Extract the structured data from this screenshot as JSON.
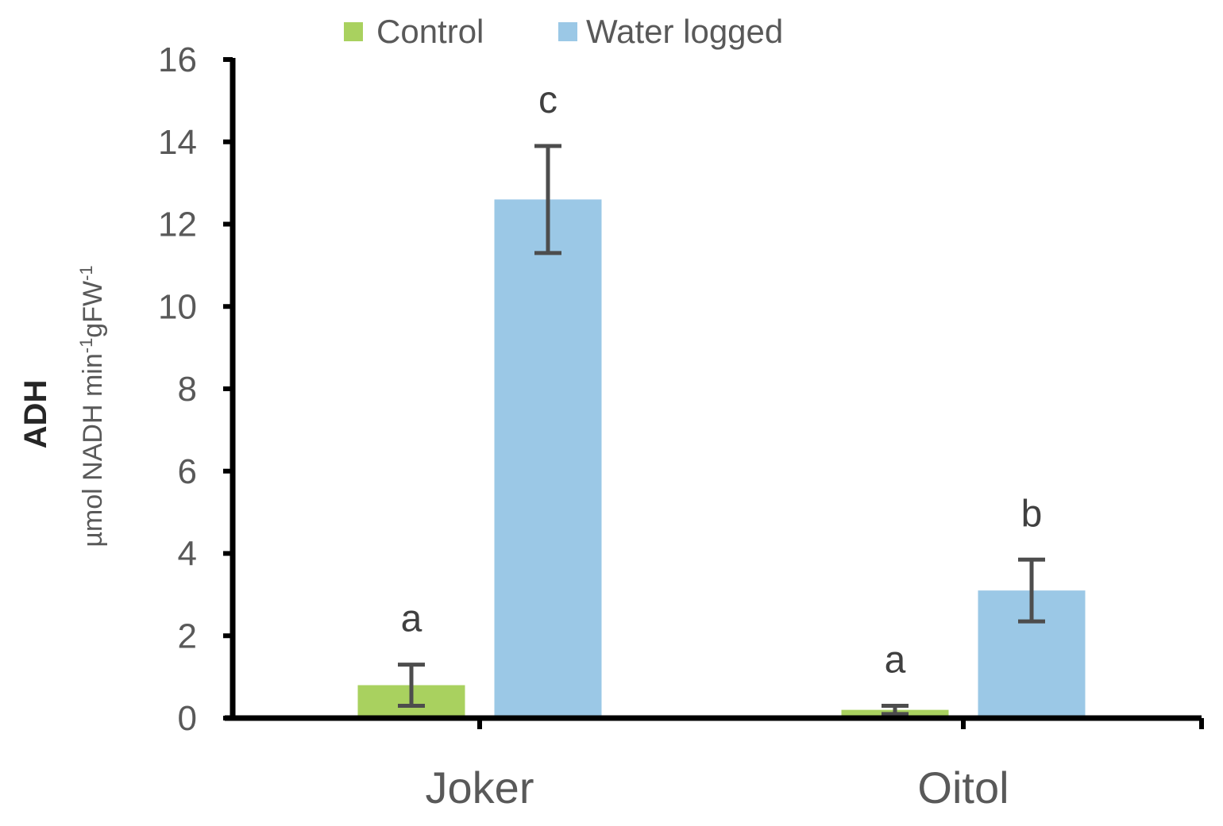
{
  "chart_data": {
    "type": "bar",
    "categories": [
      "Joker",
      "Oitol"
    ],
    "series": [
      {
        "name": "Control",
        "color": "#a9d15f",
        "values": [
          0.8,
          0.2
        ],
        "error": [
          0.5,
          0.1
        ],
        "letters": [
          "a",
          "a"
        ]
      },
      {
        "name": "Water logged",
        "color": "#9bc8e6",
        "values": [
          12.6,
          3.1
        ],
        "error": [
          1.3,
          0.75
        ],
        "letters": [
          "c",
          "b"
        ]
      }
    ],
    "ylabel": {
      "main": "ADH",
      "sub_parts": [
        {
          "text": "µmol NADH min",
          "sup": false
        },
        {
          "text": "-1",
          "sup": true
        },
        {
          "text": "gFW",
          "sup": false
        },
        {
          "text": "-1",
          "sup": true
        }
      ]
    },
    "ylim": [
      0,
      16
    ],
    "yticks": [
      "0",
      "2",
      "4",
      "6",
      "8",
      "10",
      "12",
      "14",
      "16"
    ],
    "legend_position": "top",
    "grid": false,
    "axis_color": "#000000",
    "errorbar_color": "#4d4d4d"
  }
}
